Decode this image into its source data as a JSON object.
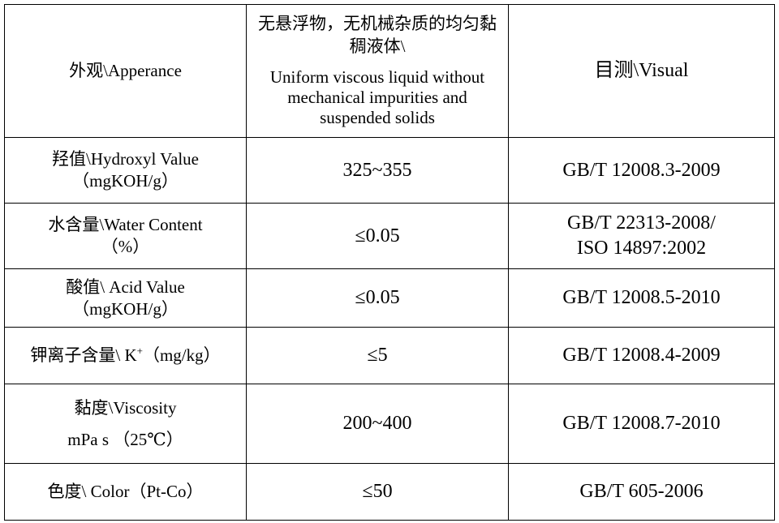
{
  "table": {
    "rows": [
      {
        "name_lines": [
          "外观\\Apperance"
        ],
        "value_zh": "无悬浮物，无机械杂质的均匀黏稠液体\\",
        "value_en": "Uniform viscous liquid without mechanical impurities and suspended solids",
        "method_lines": [
          "目测\\Visual"
        ]
      },
      {
        "name_lines": [
          "羟值\\Hydroxyl Value",
          "（mgKOH/g）"
        ],
        "value": "325~355",
        "method_lines": [
          "GB/T 12008.3-2009"
        ]
      },
      {
        "name_lines": [
          "水含量\\Water Content",
          "（%）"
        ],
        "value": "≤0.05",
        "method_lines": [
          "GB/T 22313-2008/",
          "ISO 14897:2002"
        ]
      },
      {
        "name_lines": [
          "酸值\\ Acid Value",
          "（mgKOH/g）"
        ],
        "value": "≤0.05",
        "method_lines": [
          "GB/T 12008.5-2010"
        ]
      },
      {
        "name_prefix": "钾离子含量\\ K",
        "name_sup": "+",
        "name_suffix": "（mg/kg）",
        "value": "≤5",
        "method_lines": [
          "GB/T 12008.4-2009"
        ]
      },
      {
        "name_lines": [
          "黏度\\Viscosity",
          "mPa s （25℃）"
        ],
        "value": "200~400",
        "method_lines": [
          "GB/T 12008.7-2010"
        ]
      },
      {
        "name_lines": [
          "色度\\ Color（Pt-Co）"
        ],
        "value": "≤50",
        "method_lines": [
          "GB/T 605-2006"
        ]
      }
    ]
  }
}
